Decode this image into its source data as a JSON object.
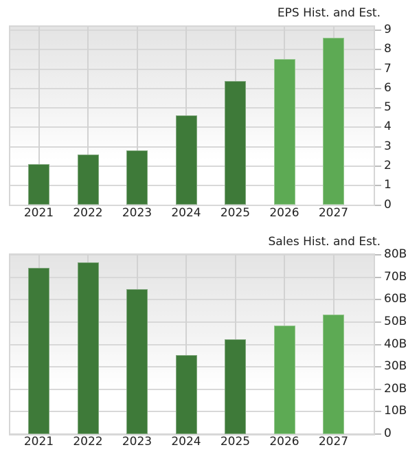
{
  "chart_data": [
    {
      "type": "bar",
      "title": "EPS Hist. and Est.",
      "categories": [
        "2021",
        "2022",
        "2023",
        "2024",
        "2025",
        "2026",
        "2027"
      ],
      "values": [
        2.1,
        2.6,
        2.8,
        4.6,
        6.4,
        7.5,
        8.6
      ],
      "series_kind": [
        "historical",
        "historical",
        "historical",
        "historical",
        "historical",
        "estimate",
        "estimate"
      ],
      "yticks": [
        "0",
        "1",
        "2",
        "3",
        "4",
        "5",
        "6",
        "7",
        "8",
        "9"
      ],
      "ylim": [
        0,
        9
      ],
      "xlabel": "",
      "ylabel": "",
      "axis_position": "right",
      "grid": true,
      "colors": {
        "historical": "#3e7a39",
        "estimate": "#5daa54"
      }
    },
    {
      "type": "bar",
      "title": "Sales Hist. and Est.",
      "categories": [
        "2021",
        "2022",
        "2023",
        "2024",
        "2025",
        "2026",
        "2027"
      ],
      "values": [
        74.2,
        76.5,
        64.7,
        35.1,
        42.3,
        48.5,
        53.2
      ],
      "units": "B",
      "series_kind": [
        "historical",
        "historical",
        "historical",
        "historical",
        "historical",
        "estimate",
        "estimate"
      ],
      "yticks": [
        "0",
        "10B",
        "20B",
        "30B",
        "40B",
        "50B",
        "60B",
        "70B",
        "80B"
      ],
      "ylim": [
        0,
        80
      ],
      "xlabel": "",
      "ylabel": "",
      "axis_position": "right",
      "grid": true,
      "colors": {
        "historical": "#3e7a39",
        "estimate": "#5daa54"
      }
    }
  ]
}
